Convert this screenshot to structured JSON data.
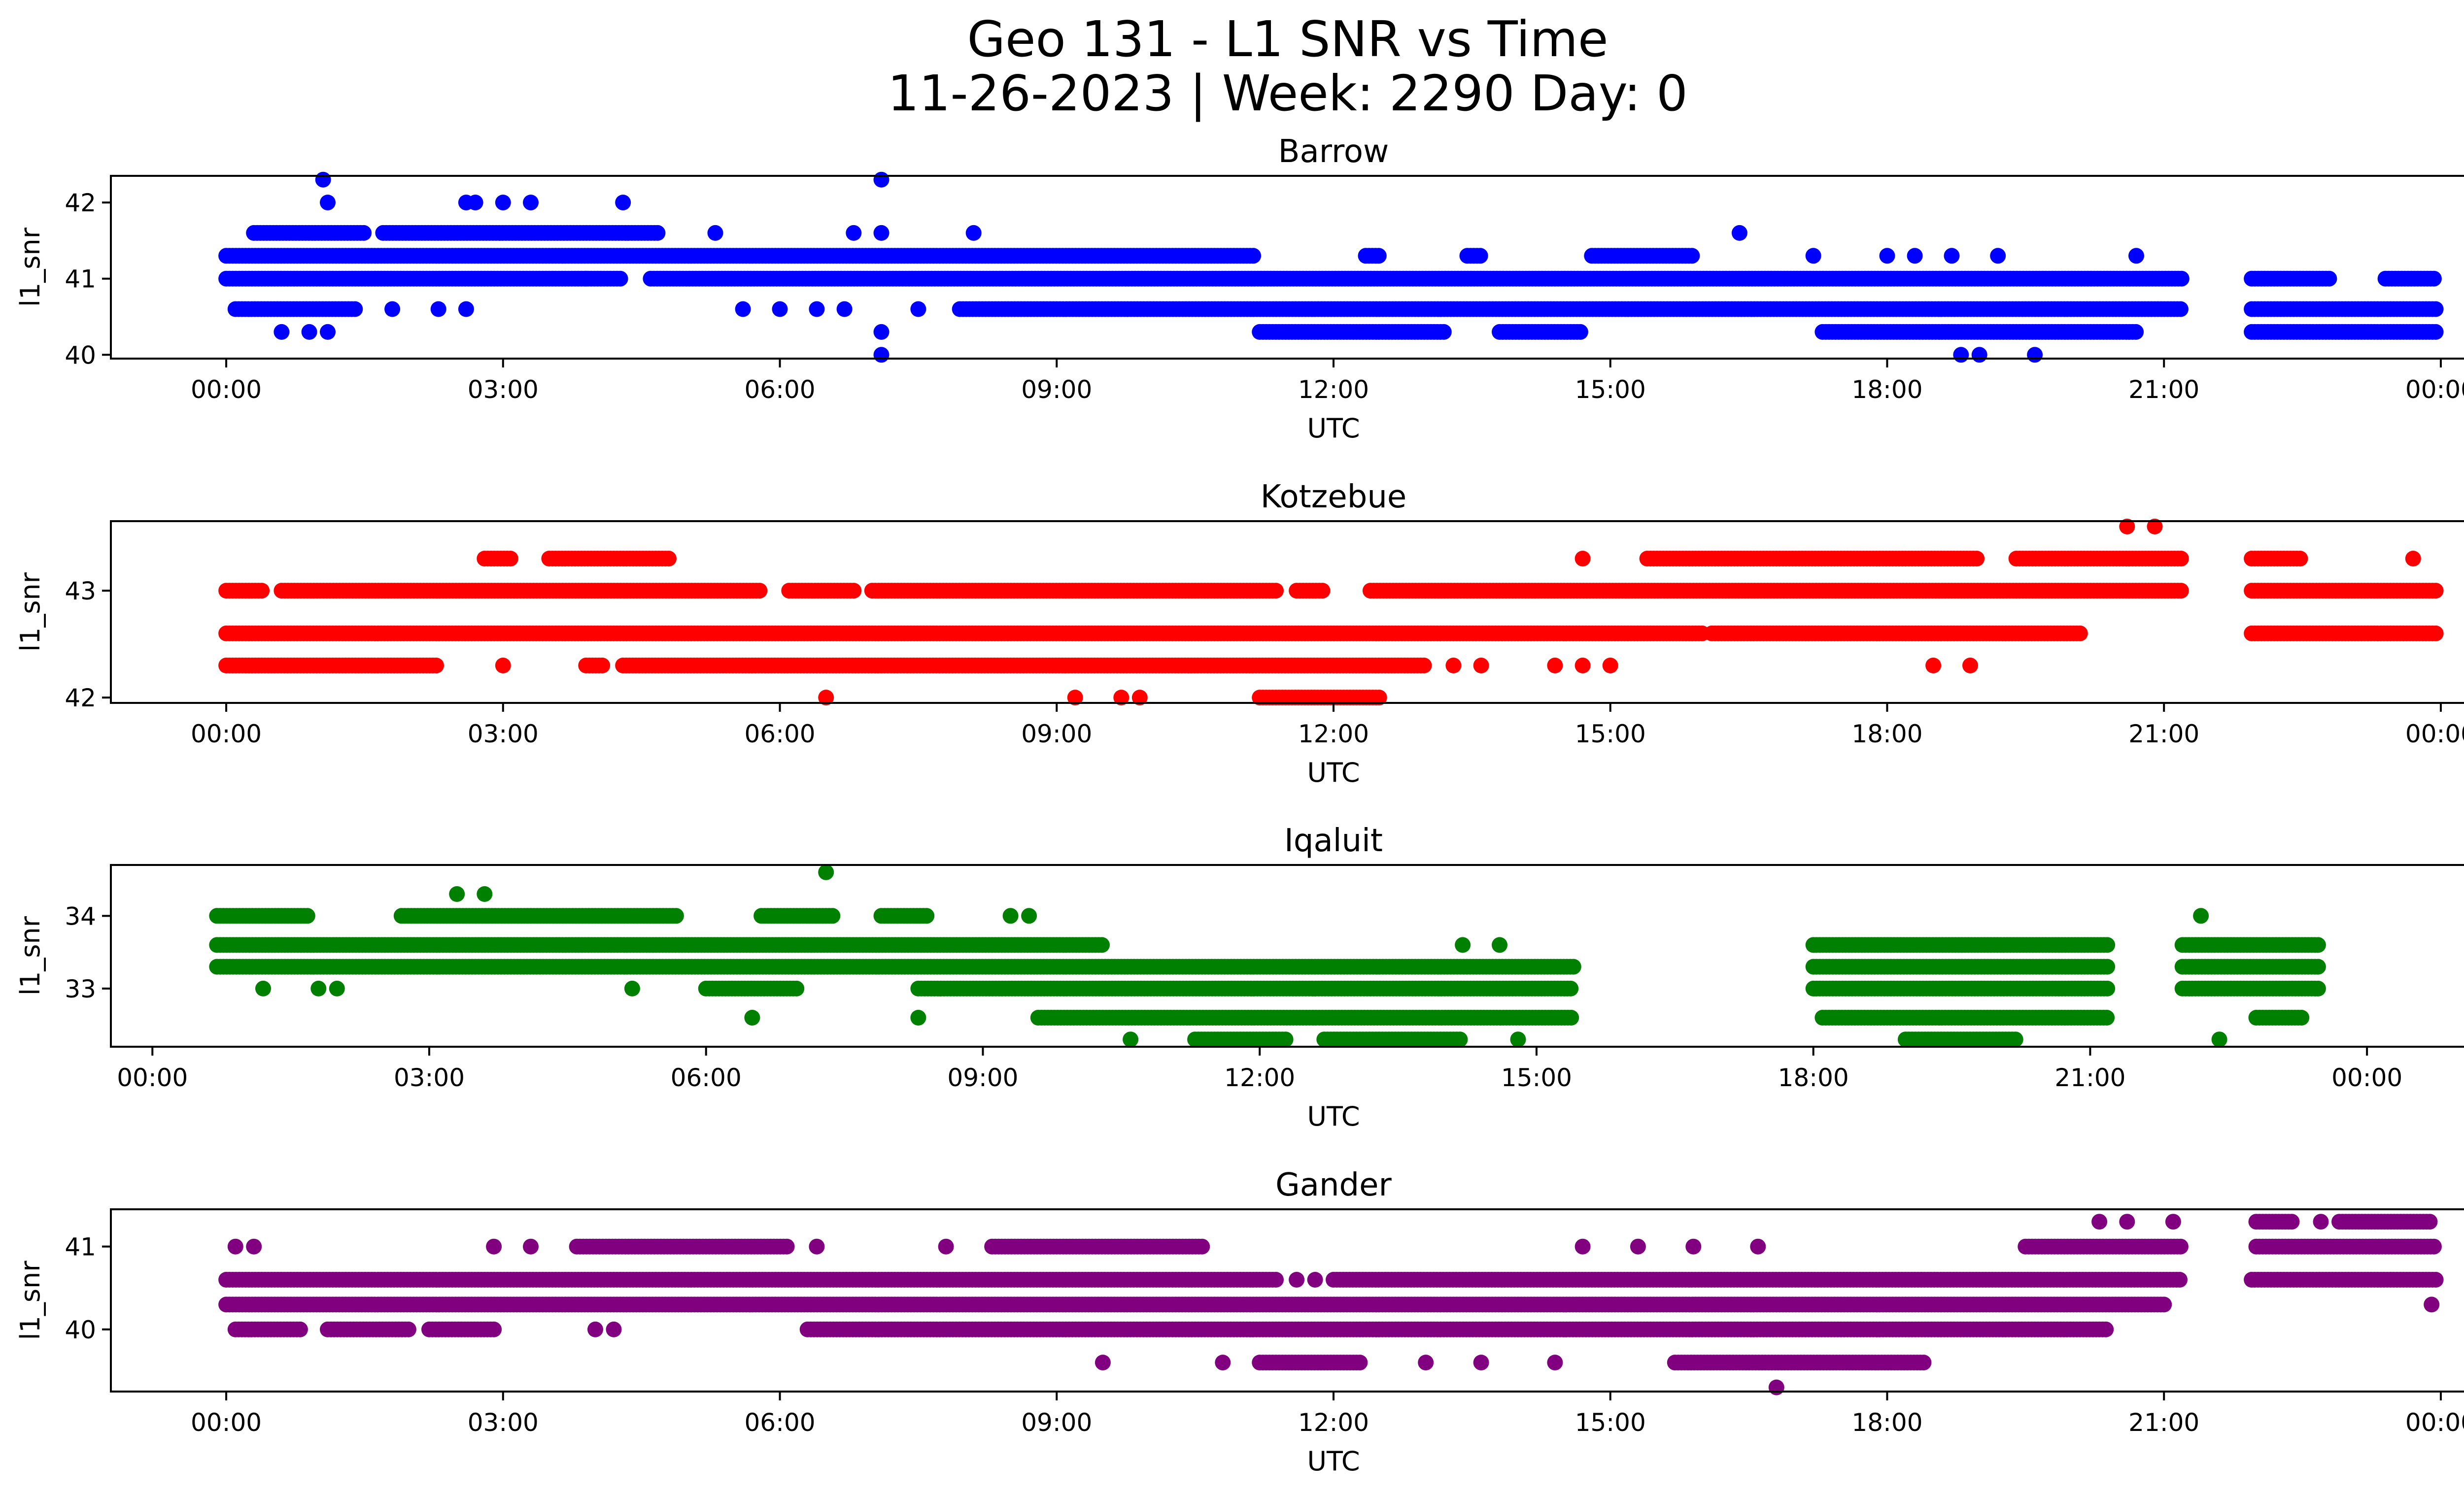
{
  "figure": {
    "title_line1": "Geo 131 - L1 SNR vs Time",
    "title_line2": "11-26-2023 | Week: 2290 Day: 0"
  },
  "chart_data": [
    {
      "type": "scatter",
      "title": "Barrow",
      "xlabel": "UTC",
      "ylabel": "l1_snr",
      "color": "#0000ff",
      "xlim_hours": [
        -1.25,
        25.25
      ],
      "ylim": [
        39.95,
        42.35
      ],
      "yticks": [
        40,
        41,
        42
      ],
      "xtick_labels": [
        "00:00",
        "03:00",
        "06:00",
        "09:00",
        "12:00",
        "15:00",
        "18:00",
        "21:00",
        "00:00"
      ],
      "bands": [
        {
          "y": 41.3,
          "segments": [
            [
              0.0,
              11.15
            ],
            [
              12.35,
              12.5
            ],
            [
              13.45,
              13.6
            ],
            [
              14.8,
              15.9
            ]
          ]
        },
        {
          "y": 41.0,
          "segments": [
            [
              0.0,
              4.3
            ],
            [
              4.6,
              21.2
            ],
            [
              21.95,
              22.8
            ],
            [
              23.4,
              23.95
            ]
          ]
        },
        {
          "y": 40.6,
          "segments": [
            [
              0.1,
              1.4
            ],
            [
              7.95,
              21.2
            ],
            [
              21.95,
              23.95
            ]
          ]
        },
        {
          "y": 41.6,
          "segments": [
            [
              1.7,
              4.7
            ],
            [
              0.3,
              1.5
            ]
          ]
        },
        {
          "y": 40.3,
          "segments": [
            [
              11.2,
              13.2
            ],
            [
              13.8,
              14.7
            ],
            [
              17.3,
              20.7
            ],
            [
              21.95,
              23.95
            ]
          ]
        }
      ],
      "points": [
        {
          "x": 1.05,
          "y": 42.3
        },
        {
          "x": 1.1,
          "y": 42.0
        },
        {
          "x": 2.6,
          "y": 42.0
        },
        {
          "x": 2.7,
          "y": 42.0
        },
        {
          "x": 3.0,
          "y": 42.0
        },
        {
          "x": 3.3,
          "y": 42.0
        },
        {
          "x": 4.3,
          "y": 42.0
        },
        {
          "x": 7.1,
          "y": 42.3
        },
        {
          "x": 7.1,
          "y": 41.6
        },
        {
          "x": 6.8,
          "y": 41.6
        },
        {
          "x": 8.1,
          "y": 41.6
        },
        {
          "x": 16.4,
          "y": 41.6
        },
        {
          "x": 5.3,
          "y": 41.6
        },
        {
          "x": 3.9,
          "y": 41.0
        },
        {
          "x": 20.7,
          "y": 41.3
        },
        {
          "x": 17.2,
          "y": 41.3
        },
        {
          "x": 18.3,
          "y": 41.3
        },
        {
          "x": 18.7,
          "y": 41.3
        },
        {
          "x": 19.2,
          "y": 41.3
        },
        {
          "x": 18.0,
          "y": 41.3
        },
        {
          "x": 7.1,
          "y": 40.3
        },
        {
          "x": 7.1,
          "y": 40.0
        },
        {
          "x": 18.8,
          "y": 40.0
        },
        {
          "x": 19.0,
          "y": 40.0
        },
        {
          "x": 19.6,
          "y": 40.0
        },
        {
          "x": 0.6,
          "y": 40.3
        },
        {
          "x": 0.9,
          "y": 40.3
        },
        {
          "x": 1.1,
          "y": 40.3
        },
        {
          "x": 1.8,
          "y": 40.6
        },
        {
          "x": 2.3,
          "y": 40.6
        },
        {
          "x": 2.6,
          "y": 40.6
        },
        {
          "x": 5.6,
          "y": 40.6
        },
        {
          "x": 6.0,
          "y": 40.6
        },
        {
          "x": 6.4,
          "y": 40.6
        },
        {
          "x": 6.7,
          "y": 40.6
        },
        {
          "x": 7.5,
          "y": 40.6
        }
      ]
    },
    {
      "type": "scatter",
      "title": "Kotzebue",
      "xlabel": "UTC",
      "ylabel": "l1_snr",
      "color": "#ff0000",
      "xlim_hours": [
        -1.25,
        25.25
      ],
      "ylim": [
        41.95,
        43.65
      ],
      "yticks": [
        42,
        43
      ],
      "xtick_labels": [
        "00:00",
        "03:00",
        "06:00",
        "09:00",
        "12:00",
        "15:00",
        "18:00",
        "21:00",
        "00:00"
      ],
      "bands": [
        {
          "y": 42.6,
          "segments": [
            [
              0.0,
              16.0
            ],
            [
              16.1,
              20.1
            ],
            [
              21.95,
              23.95
            ]
          ]
        },
        {
          "y": 43.0,
          "segments": [
            [
              0.0,
              0.4
            ],
            [
              0.6,
              5.8
            ],
            [
              6.1,
              6.8
            ],
            [
              7.0,
              11.4
            ],
            [
              11.6,
              11.9
            ],
            [
              12.4,
              21.2
            ],
            [
              21.95,
              23.95
            ]
          ]
        },
        {
          "y": 42.3,
          "segments": [
            [
              0.0,
              2.3
            ],
            [
              4.3,
              13.0
            ],
            [
              3.9,
              4.1
            ]
          ]
        },
        {
          "y": 43.3,
          "segments": [
            [
              2.8,
              3.1
            ],
            [
              3.5,
              4.8
            ],
            [
              15.4,
              19.0
            ],
            [
              19.4,
              21.2
            ],
            [
              21.95,
              22.5
            ]
          ]
        },
        {
          "y": 42.0,
          "segments": [
            [
              11.2,
              12.5
            ]
          ]
        }
      ],
      "points": [
        {
          "x": 20.6,
          "y": 43.6
        },
        {
          "x": 20.9,
          "y": 43.6
        },
        {
          "x": 14.7,
          "y": 43.3
        },
        {
          "x": 23.7,
          "y": 43.3
        },
        {
          "x": 3.0,
          "y": 42.3
        },
        {
          "x": 13.3,
          "y": 42.3
        },
        {
          "x": 13.6,
          "y": 42.3
        },
        {
          "x": 14.4,
          "y": 42.3
        },
        {
          "x": 14.7,
          "y": 42.3
        },
        {
          "x": 15.0,
          "y": 42.3
        },
        {
          "x": 18.5,
          "y": 42.3
        },
        {
          "x": 18.9,
          "y": 42.3
        },
        {
          "x": 6.5,
          "y": 42.0
        },
        {
          "x": 9.2,
          "y": 42.0
        },
        {
          "x": 9.7,
          "y": 42.0
        },
        {
          "x": 9.9,
          "y": 42.0
        }
      ]
    },
    {
      "type": "scatter",
      "title": "Iqaluit",
      "xlabel": "UTC",
      "ylabel": "l1_snr",
      "color": "#008000",
      "xlim_hours": [
        -0.45,
        26.05
      ],
      "ylim": [
        32.2,
        34.7
      ],
      "yticks": [
        33,
        34
      ],
      "xtick_labels": [
        "00:00",
        "03:00",
        "06:00",
        "09:00",
        "12:00",
        "15:00",
        "18:00",
        "21:00",
        "00:00"
      ],
      "bands": [
        {
          "y": 33.6,
          "segments": [
            [
              0.7,
              10.3
            ],
            [
              18.0,
              21.2
            ],
            [
              22.0,
              23.5
            ]
          ]
        },
        {
          "y": 33.3,
          "segments": [
            [
              0.7,
              15.4
            ],
            [
              18.0,
              21.2
            ],
            [
              22.0,
              23.5
            ]
          ]
        },
        {
          "y": 33.0,
          "segments": [
            [
              8.3,
              15.4
            ],
            [
              18.0,
              21.2
            ],
            [
              22.0,
              23.5
            ],
            [
              6.0,
              7.0
            ]
          ]
        },
        {
          "y": 34.0,
          "segments": [
            [
              0.7,
              1.7
            ],
            [
              2.7,
              5.7
            ],
            [
              6.6,
              7.4
            ],
            [
              7.9,
              8.4
            ]
          ]
        },
        {
          "y": 32.6,
          "segments": [
            [
              9.6,
              15.4
            ],
            [
              18.1,
              21.2
            ],
            [
              22.8,
              23.3
            ]
          ]
        },
        {
          "y": 32.3,
          "segments": [
            [
              11.3,
              12.3
            ],
            [
              12.7,
              14.2
            ],
            [
              19.0,
              20.2
            ]
          ]
        }
      ],
      "points": [
        {
          "x": 7.3,
          "y": 34.6
        },
        {
          "x": 3.3,
          "y": 34.3
        },
        {
          "x": 3.6,
          "y": 34.3
        },
        {
          "x": 22.2,
          "y": 34.0
        },
        {
          "x": 9.3,
          "y": 34.0
        },
        {
          "x": 9.5,
          "y": 34.0
        },
        {
          "x": 14.2,
          "y": 33.6
        },
        {
          "x": 14.6,
          "y": 33.6
        },
        {
          "x": 1.2,
          "y": 33.0
        },
        {
          "x": 1.8,
          "y": 33.0
        },
        {
          "x": 2.0,
          "y": 33.0
        },
        {
          "x": 5.2,
          "y": 33.0
        },
        {
          "x": 6.5,
          "y": 32.6
        },
        {
          "x": 8.3,
          "y": 32.6
        },
        {
          "x": 10.6,
          "y": 32.3
        },
        {
          "x": 22.4,
          "y": 32.3
        },
        {
          "x": 14.8,
          "y": 32.3
        }
      ]
    },
    {
      "type": "scatter",
      "title": "Gander",
      "xlabel": "UTC",
      "ylabel": "l1_snr",
      "color": "#800080",
      "xlim_hours": [
        -1.25,
        25.25
      ],
      "ylim": [
        39.25,
        41.45
      ],
      "yticks": [
        40,
        41
      ],
      "xtick_labels": [
        "00:00",
        "03:00",
        "06:00",
        "09:00",
        "12:00",
        "15:00",
        "18:00",
        "21:00",
        "00:00"
      ],
      "bands": [
        {
          "y": 40.6,
          "segments": [
            [
              0.0,
              11.4
            ],
            [
              12.0,
              21.2
            ],
            [
              21.95,
              23.95
            ]
          ]
        },
        {
          "y": 40.3,
          "segments": [
            [
              0.0,
              21.0
            ]
          ]
        },
        {
          "y": 40.0,
          "segments": [
            [
              0.1,
              0.8
            ],
            [
              1.1,
              2.0
            ],
            [
              2.2,
              2.9
            ],
            [
              6.3,
              20.4
            ]
          ]
        },
        {
          "y": 41.0,
          "segments": [
            [
              3.8,
              6.1
            ],
            [
              8.3,
              10.6
            ],
            [
              19.5,
              21.2
            ],
            [
              22.0,
              23.95
            ]
          ]
        },
        {
          "y": 39.6,
          "segments": [
            [
              11.2,
              12.3
            ],
            [
              15.7,
              18.4
            ]
          ]
        },
        {
          "y": 41.3,
          "segments": [
            [
              22.0,
              22.4
            ],
            [
              22.9,
              23.9
            ]
          ]
        }
      ],
      "points": [
        {
          "x": 0.1,
          "y": 41.0
        },
        {
          "x": 0.3,
          "y": 41.0
        },
        {
          "x": 2.9,
          "y": 41.0
        },
        {
          "x": 3.3,
          "y": 41.0
        },
        {
          "x": 6.4,
          "y": 41.0
        },
        {
          "x": 7.8,
          "y": 41.0
        },
        {
          "x": 14.7,
          "y": 41.0
        },
        {
          "x": 15.3,
          "y": 41.0
        },
        {
          "x": 15.9,
          "y": 41.0
        },
        {
          "x": 16.6,
          "y": 41.0
        },
        {
          "x": 20.3,
          "y": 41.3
        },
        {
          "x": 20.6,
          "y": 41.3
        },
        {
          "x": 21.1,
          "y": 41.3
        },
        {
          "x": 22.7,
          "y": 41.3
        },
        {
          "x": 23.9,
          "y": 40.3
        },
        {
          "x": 9.5,
          "y": 39.6
        },
        {
          "x": 10.8,
          "y": 39.6
        },
        {
          "x": 13.0,
          "y": 39.6
        },
        {
          "x": 13.6,
          "y": 39.6
        },
        {
          "x": 14.4,
          "y": 39.6
        },
        {
          "x": 16.8,
          "y": 39.3
        },
        {
          "x": 4.0,
          "y": 40.0
        },
        {
          "x": 4.2,
          "y": 40.0
        },
        {
          "x": 11.6,
          "y": 40.6
        },
        {
          "x": 11.8,
          "y": 40.6
        }
      ]
    }
  ]
}
